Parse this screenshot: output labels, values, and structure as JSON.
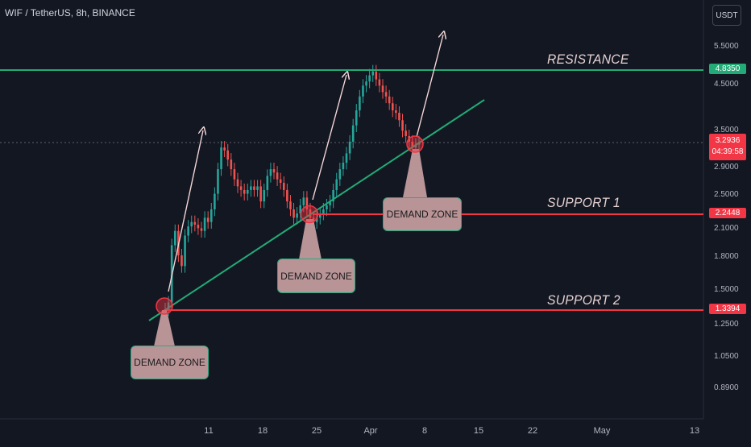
{
  "header": {
    "title": "WIF / TetherUS, 8h, BINANCE",
    "currency": "USDT"
  },
  "price_axis": {
    "ticks": [
      "5.5000",
      "4.5000",
      "3.5000",
      "2.9000",
      "2.5000",
      "2.1000",
      "1.8000",
      "1.5000",
      "1.2500",
      "1.0500",
      "0.8900"
    ],
    "resistance_label": "4.8350",
    "current_price": "3.2936",
    "countdown": "04:39:58",
    "support1_label": "2.2448",
    "support2_label": "1.3394"
  },
  "time_axis": {
    "ticks": [
      "11",
      "18",
      "25",
      "Apr",
      "8",
      "15",
      "22",
      "May",
      "13"
    ]
  },
  "annotations": {
    "resistance": "RESISTANCE",
    "support1": "SUPPORT 1",
    "support2": "SUPPORT 2",
    "demand_zone_1": "DEMAND ZONE",
    "demand_zone_2": "DEMAND ZONE",
    "demand_zone_3": "DEMAND ZONE"
  },
  "colors": {
    "background": "#131722",
    "up_candle": "#26a69a",
    "down_candle": "#ef5350",
    "resistance_line": "#22ab76",
    "support_line": "#f23645",
    "trendline": "#22ab76",
    "arrow": "#f3d6d6"
  },
  "chart_data": {
    "type": "candlestick",
    "title": "WIF / TetherUS, 8h, BINANCE",
    "ylim": [
      0.8,
      6.0
    ],
    "log_scale": true,
    "horizontal_levels": [
      {
        "name": "RESISTANCE",
        "value": 4.835
      },
      {
        "name": "SUPPORT 1",
        "value": 2.2448
      },
      {
        "name": "SUPPORT 2",
        "value": 1.3394
      }
    ],
    "current_price": 3.2936,
    "approx_closes": [
      1.35,
      1.4,
      1.9,
      2.05,
      1.8,
      1.7,
      2.0,
      2.1,
      2.15,
      2.12,
      2.08,
      2.05,
      2.2,
      2.15,
      2.3,
      2.5,
      2.85,
      3.2,
      3.15,
      3.0,
      2.85,
      2.7,
      2.6,
      2.55,
      2.5,
      2.55,
      2.6,
      2.55,
      2.6,
      2.4,
      2.55,
      2.75,
      2.85,
      2.8,
      2.7,
      2.65,
      2.55,
      2.4,
      2.3,
      2.2,
      2.25,
      2.35,
      2.45,
      2.3,
      2.2,
      2.15,
      2.2,
      2.25,
      2.3,
      2.35,
      2.4,
      2.55,
      2.7,
      2.85,
      2.95,
      3.1,
      3.3,
      3.6,
      3.9,
      4.2,
      4.45,
      4.55,
      4.7,
      4.8,
      4.6,
      4.45,
      4.3,
      4.2,
      4.05,
      3.9,
      3.85,
      3.7,
      3.5,
      3.4,
      3.3,
      3.2,
      3.25,
      3.29
    ]
  }
}
